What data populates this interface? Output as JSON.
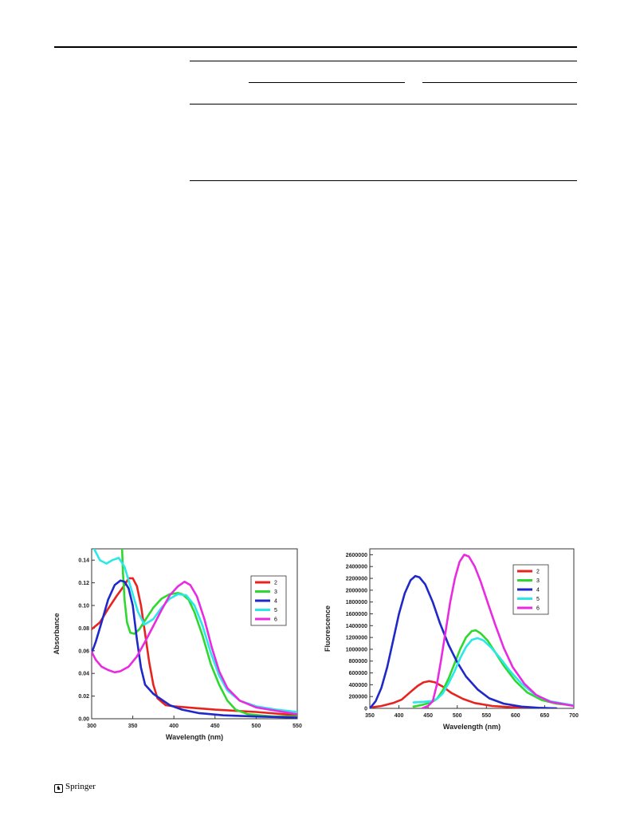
{
  "footer": {
    "publisher": "Springer"
  },
  "charts": [
    {
      "id": "absorbance",
      "chart_data": {
        "type": "line",
        "title": "",
        "xlabel": "Wavelength (nm)",
        "ylabel": "Absorbance",
        "xlim": [
          300,
          550
        ],
        "ylim": [
          0,
          0.15
        ],
        "xticks": [
          "300",
          "350",
          "400",
          "450",
          "500",
          "550"
        ],
        "yticks": [
          "0.00",
          "0.02",
          "0.04",
          "0.06",
          "0.08",
          "0.10",
          "0.12",
          "0.14"
        ],
        "legend_position": "top-right",
        "series": [
          {
            "name": "2",
            "color": "#e8231f",
            "points": [
              [
                300,
                0.079
              ],
              [
                310,
                0.085
              ],
              [
                320,
                0.097
              ],
              [
                330,
                0.108
              ],
              [
                340,
                0.118
              ],
              [
                345,
                0.124
              ],
              [
                350,
                0.124
              ],
              [
                355,
                0.117
              ],
              [
                360,
                0.1
              ],
              [
                365,
                0.075
              ],
              [
                370,
                0.05
              ],
              [
                375,
                0.03
              ],
              [
                380,
                0.018
              ],
              [
                390,
                0.012
              ],
              [
                400,
                0.011
              ],
              [
                450,
                0.008
              ],
              [
                500,
                0.006
              ],
              [
                550,
                0.003
              ]
            ]
          },
          {
            "name": "3",
            "color": "#2ed82e",
            "points": [
              [
                337,
                0.15
              ],
              [
                338,
                0.13
              ],
              [
                340,
                0.105
              ],
              [
                343,
                0.085
              ],
              [
                347,
                0.076
              ],
              [
                352,
                0.075
              ],
              [
                358,
                0.079
              ],
              [
                365,
                0.087
              ],
              [
                375,
                0.098
              ],
              [
                385,
                0.106
              ],
              [
                395,
                0.11
              ],
              [
                405,
                0.111
              ],
              [
                410,
                0.11
              ],
              [
                418,
                0.105
              ],
              [
                425,
                0.094
              ],
              [
                435,
                0.073
              ],
              [
                445,
                0.048
              ],
              [
                455,
                0.03
              ],
              [
                465,
                0.016
              ],
              [
                475,
                0.008
              ],
              [
                490,
                0.004
              ],
              [
                520,
                0.002
              ],
              [
                550,
                0.002
              ]
            ]
          },
          {
            "name": "4",
            "color": "#1f28c8",
            "points": [
              [
                300,
                0.058
              ],
              [
                305,
                0.068
              ],
              [
                312,
                0.085
              ],
              [
                320,
                0.105
              ],
              [
                328,
                0.118
              ],
              [
                335,
                0.122
              ],
              [
                340,
                0.121
              ],
              [
                345,
                0.115
              ],
              [
                350,
                0.1
              ],
              [
                355,
                0.07
              ],
              [
                360,
                0.045
              ],
              [
                365,
                0.03
              ],
              [
                375,
                0.022
              ],
              [
                385,
                0.017
              ],
              [
                395,
                0.012
              ],
              [
                410,
                0.008
              ],
              [
                430,
                0.005
              ],
              [
                460,
                0.003
              ],
              [
                500,
                0.002
              ],
              [
                550,
                0.001
              ]
            ]
          },
          {
            "name": "5",
            "color": "#2be8e8",
            "points": [
              [
                303,
                0.15
              ],
              [
                310,
                0.14
              ],
              [
                318,
                0.137
              ],
              [
                325,
                0.14
              ],
              [
                333,
                0.142
              ],
              [
                340,
                0.134
              ],
              [
                348,
                0.115
              ],
              [
                356,
                0.095
              ],
              [
                364,
                0.083
              ],
              [
                375,
                0.088
              ],
              [
                385,
                0.098
              ],
              [
                395,
                0.106
              ],
              [
                405,
                0.11
              ],
              [
                415,
                0.109
              ],
              [
                425,
                0.1
              ],
              [
                435,
                0.082
              ],
              [
                445,
                0.058
              ],
              [
                455,
                0.038
              ],
              [
                465,
                0.025
              ],
              [
                480,
                0.016
              ],
              [
                500,
                0.011
              ],
              [
                525,
                0.008
              ],
              [
                550,
                0.006
              ]
            ]
          },
          {
            "name": "6",
            "color": "#e82be0",
            "points": [
              [
                300,
                0.059
              ],
              [
                305,
                0.052
              ],
              [
                312,
                0.046
              ],
              [
                320,
                0.043
              ],
              [
                328,
                0.041
              ],
              [
                335,
                0.042
              ],
              [
                345,
                0.046
              ],
              [
                355,
                0.055
              ],
              [
                365,
                0.068
              ],
              [
                375,
                0.082
              ],
              [
                385,
                0.096
              ],
              [
                395,
                0.109
              ],
              [
                405,
                0.117
              ],
              [
                413,
                0.121
              ],
              [
                420,
                0.118
              ],
              [
                428,
                0.108
              ],
              [
                437,
                0.088
              ],
              [
                446,
                0.063
              ],
              [
                455,
                0.042
              ],
              [
                465,
                0.027
              ],
              [
                480,
                0.016
              ],
              [
                500,
                0.01
              ],
              [
                525,
                0.007
              ],
              [
                550,
                0.004
              ]
            ]
          }
        ]
      }
    },
    {
      "id": "fluorescence",
      "chart_data": {
        "type": "line",
        "title": "",
        "xlabel": "Wavelength (nm)",
        "ylabel": "Fluorescence",
        "xlim": [
          350,
          700
        ],
        "ylim": [
          0,
          2700000
        ],
        "xticks": [
          "350",
          "400",
          "450",
          "500",
          "550",
          "600",
          "650",
          "700"
        ],
        "yticks": [
          "0",
          "200000",
          "400000",
          "600000",
          "800000",
          "1000000",
          "1200000",
          "1400000",
          "1600000",
          "1800000",
          "2000000",
          "2200000",
          "2400000",
          "2600000"
        ],
        "legend_position": "top-right",
        "series": [
          {
            "name": "2",
            "color": "#e8231f",
            "points": [
              [
                355,
                20000
              ],
              [
                370,
                40000
              ],
              [
                390,
                90000
              ],
              [
                405,
                150000
              ],
              [
                420,
                280000
              ],
              [
                432,
                380000
              ],
              [
                442,
                440000
              ],
              [
                452,
                460000
              ],
              [
                462,
                440000
              ],
              [
                475,
                370000
              ],
              [
                490,
                260000
              ],
              [
                510,
                160000
              ],
              [
                530,
                90000
              ],
              [
                560,
                40000
              ],
              [
                600,
                15000
              ],
              [
                640,
                5000
              ],
              [
                670,
                0
              ]
            ]
          },
          {
            "name": "3",
            "color": "#2ed82e",
            "points": [
              [
                425,
                30000
              ],
              [
                440,
                60000
              ],
              [
                455,
                100000
              ],
              [
                465,
                160000
              ],
              [
                475,
                300000
              ],
              [
                485,
                500000
              ],
              [
                495,
                750000
              ],
              [
                505,
                1000000
              ],
              [
                515,
                1200000
              ],
              [
                525,
                1310000
              ],
              [
                532,
                1320000
              ],
              [
                540,
                1270000
              ],
              [
                552,
                1150000
              ],
              [
                565,
                950000
              ],
              [
                580,
                720000
              ],
              [
                600,
                460000
              ],
              [
                620,
                270000
              ],
              [
                645,
                140000
              ],
              [
                670,
                80000
              ],
              [
                700,
                50000
              ]
            ]
          },
          {
            "name": "4",
            "color": "#1f28c8",
            "points": [
              [
                350,
                0
              ],
              [
                360,
                120000
              ],
              [
                370,
                350000
              ],
              [
                380,
                700000
              ],
              [
                390,
                1150000
              ],
              [
                400,
                1600000
              ],
              [
                410,
                1950000
              ],
              [
                420,
                2170000
              ],
              [
                428,
                2240000
              ],
              [
                435,
                2220000
              ],
              [
                445,
                2100000
              ],
              [
                458,
                1800000
              ],
              [
                470,
                1450000
              ],
              [
                485,
                1080000
              ],
              [
                500,
                780000
              ],
              [
                515,
                540000
              ],
              [
                535,
                320000
              ],
              [
                555,
                170000
              ],
              [
                580,
                80000
              ],
              [
                610,
                30000
              ],
              [
                640,
                10000
              ],
              [
                670,
                0
              ]
            ]
          },
          {
            "name": "5",
            "color": "#2be8e8",
            "points": [
              [
                425,
                100000
              ],
              [
                440,
                110000
              ],
              [
                455,
                120000
              ],
              [
                465,
                160000
              ],
              [
                475,
                250000
              ],
              [
                485,
                420000
              ],
              [
                495,
                620000
              ],
              [
                505,
                850000
              ],
              [
                515,
                1040000
              ],
              [
                525,
                1160000
              ],
              [
                535,
                1190000
              ],
              [
                545,
                1150000
              ],
              [
                558,
                1030000
              ],
              [
                572,
                870000
              ],
              [
                590,
                640000
              ],
              [
                610,
                420000
              ],
              [
                635,
                220000
              ],
              [
                660,
                120000
              ],
              [
                700,
                50000
              ]
            ]
          },
          {
            "name": "6",
            "color": "#e82be0",
            "points": [
              [
                440,
                0
              ],
              [
                450,
                40000
              ],
              [
                458,
                120000
              ],
              [
                465,
                400000
              ],
              [
                472,
                800000
              ],
              [
                480,
                1300000
              ],
              [
                488,
                1800000
              ],
              [
                496,
                2200000
              ],
              [
                504,
                2480000
              ],
              [
                512,
                2600000
              ],
              [
                520,
                2570000
              ],
              [
                530,
                2400000
              ],
              [
                540,
                2150000
              ],
              [
                552,
                1800000
              ],
              [
                565,
                1420000
              ],
              [
                580,
                1020000
              ],
              [
                595,
                700000
              ],
              [
                615,
                420000
              ],
              [
                635,
                230000
              ],
              [
                660,
                110000
              ],
              [
                700,
                40000
              ]
            ]
          }
        ]
      }
    }
  ]
}
